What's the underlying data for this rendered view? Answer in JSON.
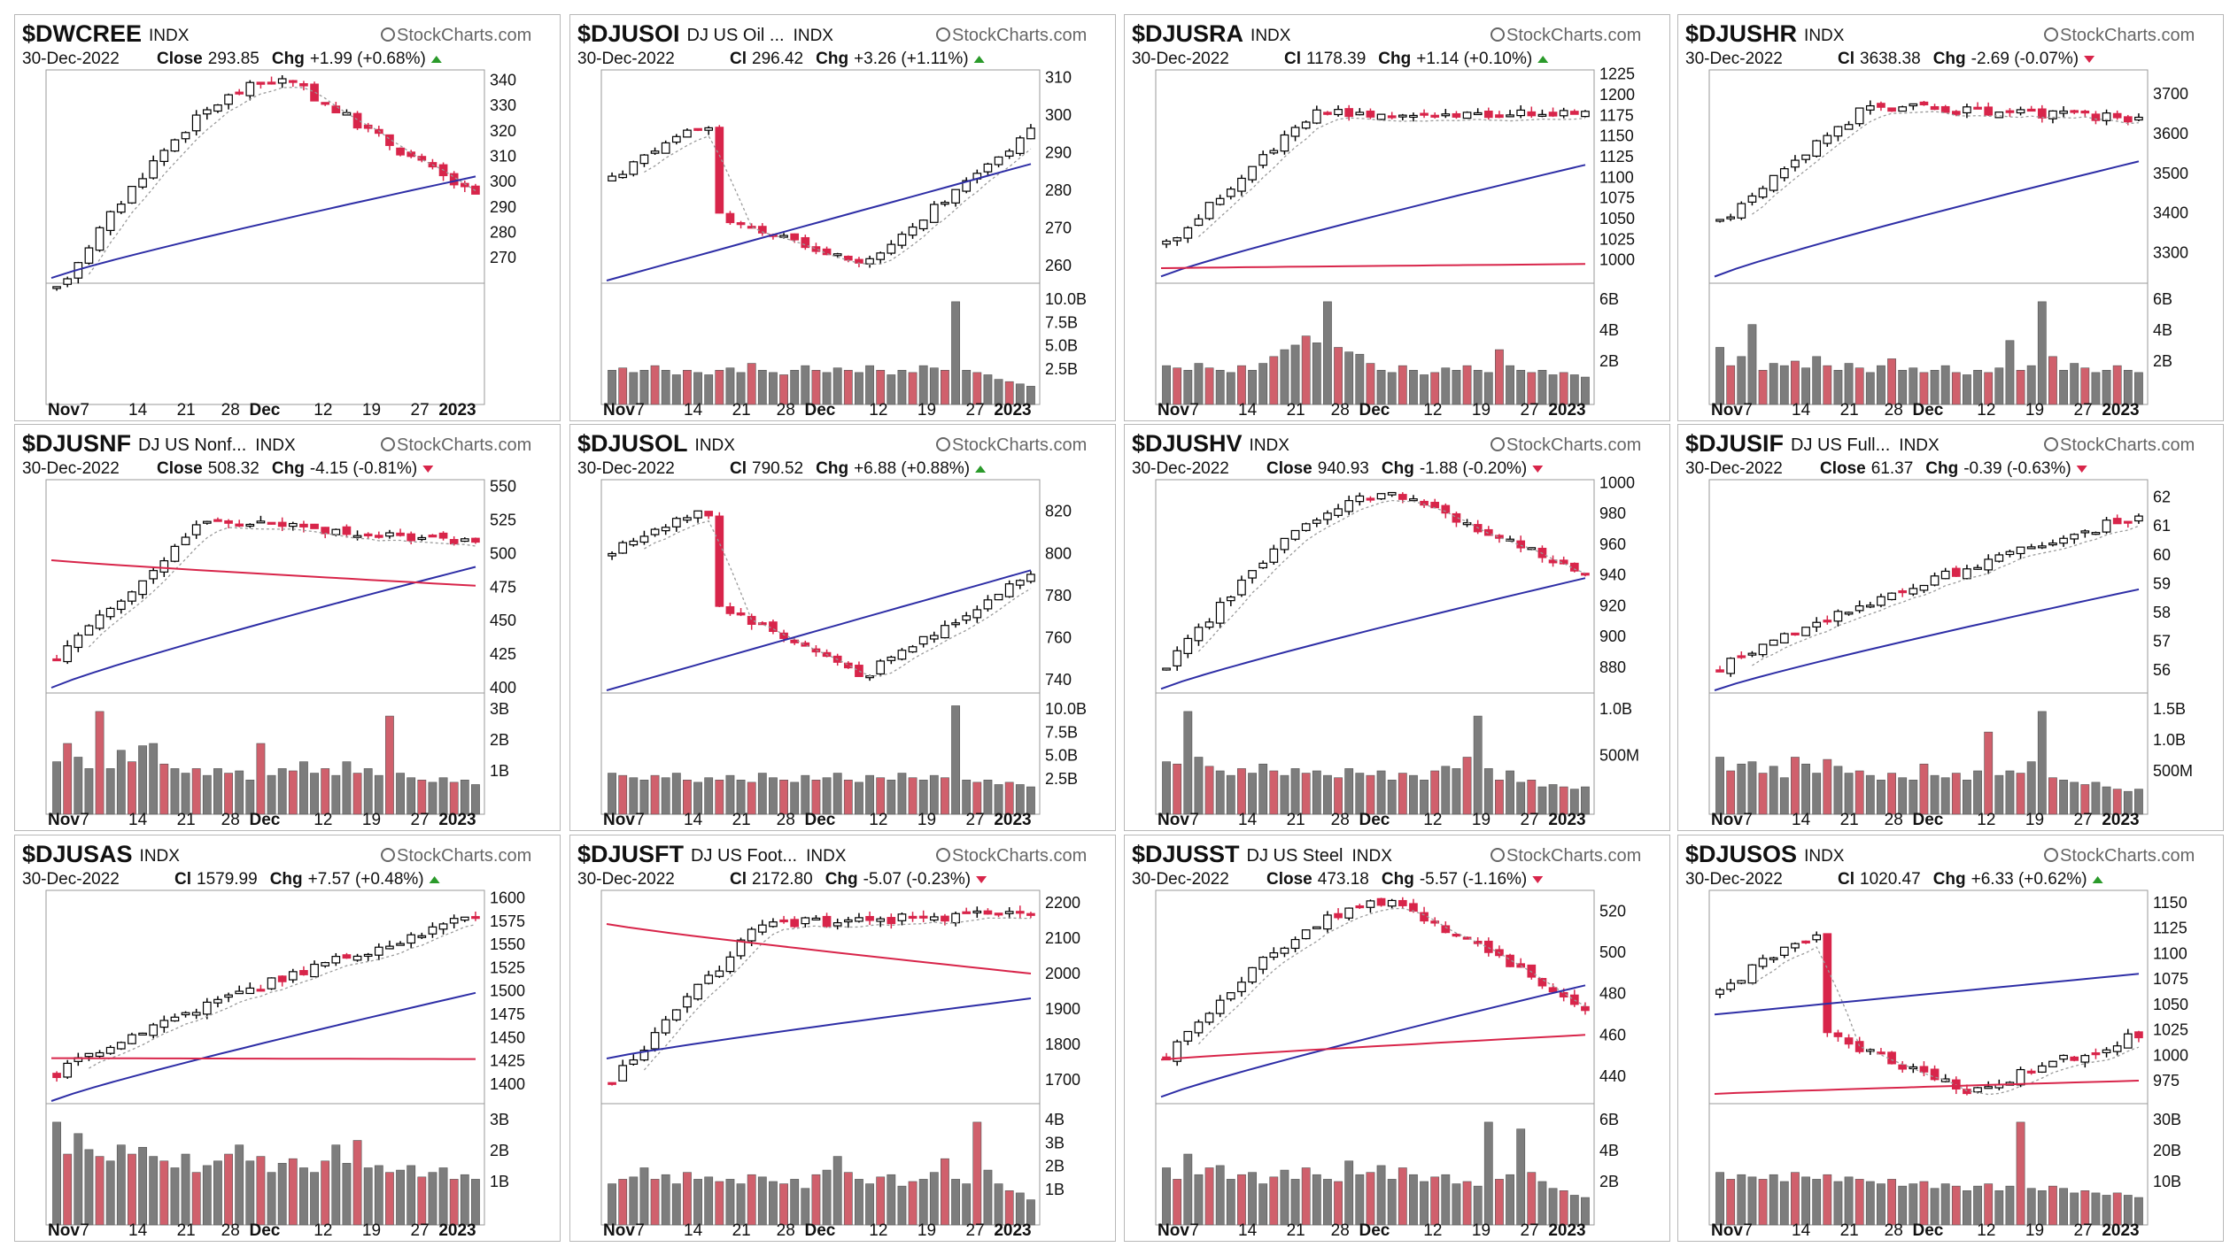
{
  "brand": "StockCharts.com",
  "date": "30-Dec-2022",
  "x_axis_labels": [
    "Nov",
    "7",
    "14",
    "21",
    "28",
    "Dec",
    "12",
    "19",
    "27",
    "2023"
  ],
  "colors": {
    "up": "#ffffff",
    "down": "#d8254a",
    "doji": "#000000",
    "ma_short": "#9a9a9a",
    "ma_mid": "#2e2ea6",
    "ma_long": "#d8254a",
    "vol_up": "#7d7d7d",
    "vol_down": "#d0606c"
  },
  "chart_data": [
    {
      "type": "candlestick",
      "symbol": "$DWCREE",
      "description": "",
      "index_tag": "INDX",
      "close_label": "Close",
      "close": "293.85",
      "change_label": "Chg",
      "change": "+1.99 (+0.68%)",
      "direction": "up",
      "y_ticks": [
        "340",
        "330",
        "320",
        "310",
        "300",
        "290",
        "280",
        "270"
      ],
      "ylim": [
        261,
        344
      ],
      "start": 257,
      "end": 294,
      "low": 264,
      "high": 340,
      "pattern": "rise_drop",
      "ma_short": true,
      "ma_mid": [
        262,
        302
      ],
      "ma_long": null,
      "volume_ticks": [],
      "volume_heights": []
    },
    {
      "type": "candlestick",
      "symbol": "$DJUSOI",
      "description": "DJ US Oil ...",
      "index_tag": "INDX",
      "close_label": "Cl",
      "close": "296.42",
      "change_label": "Chg",
      "change": "+3.26 (+1.11%)",
      "direction": "up",
      "y_ticks": [
        "310",
        "300",
        "290",
        "280",
        "270",
        "260"
      ],
      "ylim": [
        256,
        312
      ],
      "start": 283,
      "end": 296,
      "low": 260,
      "high": 305,
      "pattern": "fall_recover",
      "ma_short": true,
      "ma_mid": [
        256,
        287
      ],
      "ma_long": null,
      "volume_ticks": [
        "10.0B",
        "7.5B",
        "5.0B",
        "2.5B"
      ],
      "volume_heights": [
        0.3,
        0.32,
        0.28,
        0.3,
        0.34,
        0.3,
        0.26,
        0.3,
        0.28,
        0.26,
        0.3,
        0.32,
        0.28,
        0.36,
        0.3,
        0.28,
        0.26,
        0.3,
        0.34,
        0.3,
        0.28,
        0.32,
        0.3,
        0.28,
        0.34,
        0.3,
        0.26,
        0.3,
        0.28,
        0.34,
        0.32,
        0.3,
        0.9,
        0.3,
        0.28,
        0.26,
        0.22,
        0.2,
        0.18,
        0.16
      ]
    },
    {
      "type": "candlestick",
      "symbol": "$DJUSRA",
      "description": "",
      "index_tag": "INDX",
      "close_label": "Cl",
      "close": "1178.39",
      "change_label": "Chg",
      "change": "+1.14 (+0.10%)",
      "direction": "up",
      "y_ticks": [
        "1225",
        "1200",
        "1175",
        "1150",
        "1125",
        "1100",
        "1075",
        "1050",
        "1025",
        "1000"
      ],
      "ylim": [
        975,
        1230
      ],
      "start": 1020,
      "end": 1178,
      "low": 990,
      "high": 1205,
      "pattern": "jump_flat",
      "ma_short": true,
      "ma_mid": [
        980,
        1115
      ],
      "ma_long": [
        990,
        995
      ],
      "volume_ticks": [
        "6B",
        "4B",
        "2B"
      ],
      "volume_heights": [
        0.34,
        0.32,
        0.3,
        0.36,
        0.32,
        0.3,
        0.28,
        0.34,
        0.3,
        0.36,
        0.42,
        0.48,
        0.52,
        0.6,
        0.54,
        0.9,
        0.5,
        0.46,
        0.44,
        0.36,
        0.3,
        0.28,
        0.34,
        0.3,
        0.26,
        0.28,
        0.32,
        0.3,
        0.34,
        0.3,
        0.28,
        0.48,
        0.34,
        0.3,
        0.28,
        0.3,
        0.26,
        0.28,
        0.26,
        0.24
      ]
    },
    {
      "type": "candlestick",
      "symbol": "$DJUSHR",
      "description": "",
      "index_tag": "INDX",
      "close_label": "Cl",
      "close": "3638.38",
      "change_label": "Chg",
      "change": "-2.69 (-0.07%)",
      "direction": "down",
      "y_ticks": [
        "3700",
        "3600",
        "3500",
        "3400",
        "3300"
      ],
      "ylim": [
        3230,
        3760
      ],
      "start": 3380,
      "end": 3638,
      "low": 3250,
      "high": 3720,
      "pattern": "jump_flat",
      "ma_short": true,
      "ma_mid": [
        3240,
        3530
      ],
      "ma_long": null,
      "volume_ticks": [
        "6B",
        "4B",
        "2B"
      ],
      "volume_heights": [
        0.5,
        0.34,
        0.42,
        0.7,
        0.3,
        0.36,
        0.34,
        0.38,
        0.32,
        0.42,
        0.34,
        0.3,
        0.36,
        0.32,
        0.28,
        0.34,
        0.4,
        0.3,
        0.32,
        0.28,
        0.3,
        0.34,
        0.28,
        0.26,
        0.3,
        0.28,
        0.32,
        0.56,
        0.3,
        0.34,
        0.9,
        0.42,
        0.3,
        0.36,
        0.32,
        0.28,
        0.3,
        0.34,
        0.3,
        0.28
      ]
    },
    {
      "type": "candlestick",
      "symbol": "$DJUSNF",
      "description": "DJ US Nonf...",
      "index_tag": "INDX",
      "close_label": "Close",
      "close": "508.32",
      "change_label": "Chg",
      "change": "-4.15 (-0.81%)",
      "direction": "down",
      "y_ticks": [
        "550",
        "525",
        "500",
        "475",
        "450",
        "425",
        "400"
      ],
      "ylim": [
        398,
        555
      ],
      "start": 420,
      "end": 508,
      "low": 405,
      "high": 545,
      "pattern": "jump_flat",
      "ma_short": true,
      "ma_mid": [
        400,
        490
      ],
      "ma_long": [
        495,
        476
      ],
      "volume_ticks": [
        "3B",
        "2B",
        "1B"
      ],
      "volume_heights": [
        0.46,
        0.62,
        0.5,
        0.4,
        0.9,
        0.4,
        0.56,
        0.46,
        0.6,
        0.62,
        0.44,
        0.4,
        0.36,
        0.4,
        0.34,
        0.4,
        0.36,
        0.38,
        0.3,
        0.62,
        0.34,
        0.4,
        0.38,
        0.46,
        0.36,
        0.4,
        0.34,
        0.46,
        0.36,
        0.4,
        0.34,
        0.86,
        0.36,
        0.32,
        0.3,
        0.28,
        0.32,
        0.28,
        0.3,
        0.26
      ]
    },
    {
      "type": "candlestick",
      "symbol": "$DJUSOL",
      "description": "",
      "index_tag": "INDX",
      "close_label": "Cl",
      "close": "790.52",
      "change_label": "Chg",
      "change": "+6.88 (+0.88%)",
      "direction": "up",
      "y_ticks": [
        "820",
        "800",
        "780",
        "760",
        "740"
      ],
      "ylim": [
        735,
        835
      ],
      "start": 800,
      "end": 790,
      "low": 742,
      "high": 832,
      "pattern": "fall_recover",
      "ma_short": true,
      "ma_mid": [
        735,
        792
      ],
      "ma_long": null,
      "volume_ticks": [
        "10.0B",
        "7.5B",
        "5.0B",
        "2.5B"
      ],
      "volume_heights": [
        0.36,
        0.34,
        0.32,
        0.3,
        0.34,
        0.32,
        0.36,
        0.3,
        0.28,
        0.32,
        0.3,
        0.34,
        0.3,
        0.28,
        0.36,
        0.32,
        0.3,
        0.28,
        0.34,
        0.3,
        0.32,
        0.36,
        0.3,
        0.28,
        0.34,
        0.32,
        0.3,
        0.36,
        0.32,
        0.3,
        0.34,
        0.32,
        0.95,
        0.3,
        0.28,
        0.3,
        0.26,
        0.28,
        0.26,
        0.24
      ]
    },
    {
      "type": "candlestick",
      "symbol": "$DJUSHV",
      "description": "",
      "index_tag": "INDX",
      "close_label": "Close",
      "close": "940.93",
      "change_label": "Chg",
      "change": "-1.88 (-0.20%)",
      "direction": "down",
      "y_ticks": [
        "1000",
        "980",
        "960",
        "940",
        "920",
        "900",
        "880"
      ],
      "ylim": [
        865,
        1002
      ],
      "start": 880,
      "end": 941,
      "low": 868,
      "high": 992,
      "pattern": "rise_drop",
      "ma_short": true,
      "ma_mid": [
        866,
        938
      ],
      "ma_long": null,
      "volume_ticks": [
        "1.0B",
        "500M"
      ],
      "volume_heights": [
        0.46,
        0.44,
        0.9,
        0.5,
        0.42,
        0.38,
        0.34,
        0.4,
        0.36,
        0.44,
        0.38,
        0.34,
        0.4,
        0.36,
        0.38,
        0.34,
        0.32,
        0.4,
        0.36,
        0.34,
        0.38,
        0.3,
        0.36,
        0.34,
        0.3,
        0.38,
        0.42,
        0.4,
        0.5,
        0.86,
        0.4,
        0.3,
        0.38,
        0.28,
        0.3,
        0.24,
        0.26,
        0.24,
        0.22,
        0.24
      ]
    },
    {
      "type": "candlestick",
      "symbol": "$DJUSIF",
      "description": "DJ US Full...",
      "index_tag": "INDX",
      "close_label": "Close",
      "close": "61.37",
      "change_label": "Chg",
      "change": "-0.39 (-0.63%)",
      "direction": "down",
      "y_ticks": [
        "62",
        "61",
        "60",
        "59",
        "58",
        "57",
        "56"
      ],
      "ylim": [
        55.3,
        62.6
      ],
      "start": 56.0,
      "end": 61.37,
      "low": 55.6,
      "high": 62.3,
      "pattern": "rise_flat",
      "ma_short": true,
      "ma_mid": [
        55.3,
        58.8
      ],
      "ma_long": null,
      "volume_ticks": [
        "1.5B",
        "1.0B",
        "500M"
      ],
      "volume_heights": [
        0.5,
        0.38,
        0.44,
        0.46,
        0.36,
        0.42,
        0.32,
        0.5,
        0.44,
        0.36,
        0.48,
        0.42,
        0.36,
        0.38,
        0.34,
        0.3,
        0.36,
        0.32,
        0.3,
        0.44,
        0.34,
        0.32,
        0.36,
        0.3,
        0.38,
        0.72,
        0.34,
        0.38,
        0.36,
        0.46,
        0.9,
        0.32,
        0.3,
        0.28,
        0.26,
        0.28,
        0.24,
        0.22,
        0.2,
        0.22
      ]
    },
    {
      "type": "candlestick",
      "symbol": "$DJUSAS",
      "description": "",
      "index_tag": "INDX",
      "close_label": "Cl",
      "close": "1579.99",
      "change_label": "Chg",
      "change": "+7.57 (+0.48%)",
      "direction": "up",
      "y_ticks": [
        "1600",
        "1575",
        "1550",
        "1525",
        "1500",
        "1475",
        "1450",
        "1425",
        "1400"
      ],
      "ylim": [
        1382,
        1608
      ],
      "start": 1410,
      "end": 1580,
      "low": 1395,
      "high": 1598,
      "pattern": "rise_flat",
      "ma_short": true,
      "ma_mid": [
        1382,
        1498
      ],
      "ma_long": [
        1428,
        1427
      ],
      "volume_ticks": [
        "3B",
        "2B",
        "1B"
      ],
      "volume_heights": [
        0.9,
        0.62,
        0.8,
        0.66,
        0.6,
        0.56,
        0.7,
        0.62,
        0.68,
        0.6,
        0.56,
        0.5,
        0.62,
        0.46,
        0.52,
        0.56,
        0.62,
        0.7,
        0.56,
        0.6,
        0.46,
        0.54,
        0.58,
        0.5,
        0.46,
        0.56,
        0.7,
        0.54,
        0.74,
        0.5,
        0.52,
        0.46,
        0.48,
        0.52,
        0.42,
        0.46,
        0.5,
        0.4,
        0.44,
        0.4
      ]
    },
    {
      "type": "candlestick",
      "symbol": "$DJUSFT",
      "description": "DJ US Foot...",
      "index_tag": "INDX",
      "close_label": "Cl",
      "close": "2172.80",
      "change_label": "Chg",
      "change": "-5.07 (-0.23%)",
      "direction": "down",
      "y_ticks": [
        "2200",
        "2100",
        "2000",
        "1900",
        "1800",
        "1700"
      ],
      "ylim": [
        1640,
        2235
      ],
      "start": 1700,
      "end": 2173,
      "low": 1660,
      "high": 2215,
      "pattern": "jump_flat",
      "ma_short": true,
      "ma_mid": [
        1760,
        1930
      ],
      "ma_long": [
        2140,
        2000
      ],
      "volume_ticks": [
        "4B",
        "3B",
        "2B",
        "1B"
      ],
      "volume_heights": [
        0.36,
        0.4,
        0.42,
        0.5,
        0.4,
        0.44,
        0.36,
        0.46,
        0.4,
        0.42,
        0.38,
        0.4,
        0.36,
        0.44,
        0.42,
        0.38,
        0.36,
        0.4,
        0.32,
        0.44,
        0.48,
        0.6,
        0.46,
        0.4,
        0.36,
        0.42,
        0.44,
        0.34,
        0.38,
        0.4,
        0.46,
        0.58,
        0.4,
        0.36,
        0.9,
        0.48,
        0.36,
        0.3,
        0.28,
        0.22
      ]
    },
    {
      "type": "candlestick",
      "symbol": "$DJUSST",
      "description": "DJ US Steel",
      "index_tag": "INDX",
      "close_label": "Close",
      "close": "473.18",
      "change_label": "Chg",
      "change": "-5.57 (-1.16%)",
      "direction": "down",
      "y_ticks": [
        "520",
        "500",
        "480",
        "460",
        "440"
      ],
      "ylim": [
        428,
        530
      ],
      "start": 450,
      "end": 473,
      "low": 432,
      "high": 525,
      "pattern": "rise_drop",
      "ma_short": true,
      "ma_mid": [
        430,
        484
      ],
      "ma_long": [
        448,
        460
      ],
      "volume_ticks": [
        "6B",
        "4B",
        "2B"
      ],
      "volume_heights": [
        0.5,
        0.4,
        0.62,
        0.44,
        0.5,
        0.52,
        0.4,
        0.44,
        0.46,
        0.36,
        0.42,
        0.48,
        0.4,
        0.5,
        0.44,
        0.4,
        0.38,
        0.56,
        0.44,
        0.46,
        0.52,
        0.4,
        0.5,
        0.44,
        0.38,
        0.42,
        0.44,
        0.36,
        0.38,
        0.34,
        0.9,
        0.4,
        0.44,
        0.84,
        0.46,
        0.38,
        0.32,
        0.3,
        0.26,
        0.24
      ]
    },
    {
      "type": "candlestick",
      "symbol": "$DJUSOS",
      "description": "",
      "index_tag": "INDX",
      "close_label": "Cl",
      "close": "1020.47",
      "change_label": "Chg",
      "change": "+6.33 (+0.62%)",
      "direction": "up",
      "y_ticks": [
        "1150",
        "1125",
        "1100",
        "1075",
        "1050",
        "1025",
        "1000",
        "975"
      ],
      "ylim": [
        955,
        1162
      ],
      "start": 1060,
      "end": 1020,
      "low": 965,
      "high": 1150,
      "pattern": "fall_recover",
      "ma_short": true,
      "ma_mid": [
        1040,
        1080
      ],
      "ma_long": [
        962,
        975
      ],
      "volume_ticks": [
        "30B",
        "20B",
        "10B"
      ],
      "volume_heights": [
        0.46,
        0.4,
        0.44,
        0.42,
        0.4,
        0.44,
        0.38,
        0.46,
        0.42,
        0.4,
        0.44,
        0.38,
        0.42,
        0.4,
        0.38,
        0.36,
        0.4,
        0.34,
        0.36,
        0.38,
        0.32,
        0.36,
        0.34,
        0.3,
        0.34,
        0.36,
        0.3,
        0.34,
        0.9,
        0.32,
        0.3,
        0.34,
        0.32,
        0.28,
        0.3,
        0.28,
        0.26,
        0.28,
        0.26,
        0.24
      ]
    }
  ]
}
